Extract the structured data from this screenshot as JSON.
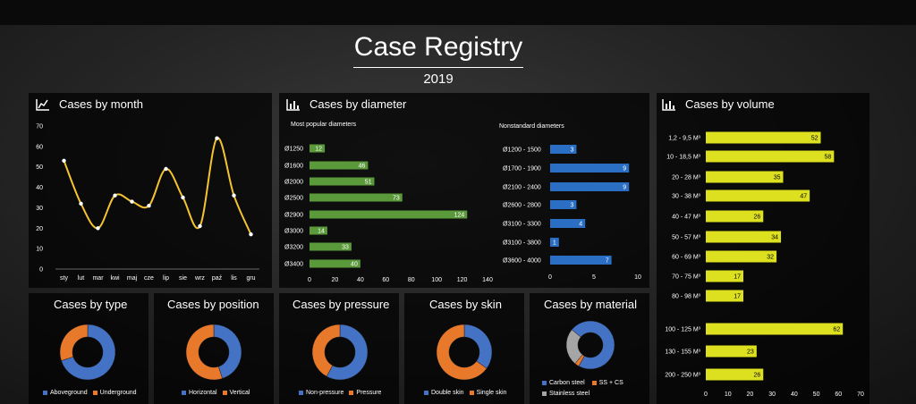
{
  "header": {
    "title": "Case Registry",
    "year": "2019"
  },
  "colors": {
    "yellow": "#f4c430",
    "green": "#5a9a3a",
    "blue": "#2a6fc4",
    "lime": "#dce01e",
    "orange": "#e8782a",
    "donutBlue": "#4472c4",
    "gray": "#a5a5a5"
  },
  "chart_data": [
    {
      "type": "line",
      "title": "Cases by month",
      "categories": [
        "sty",
        "lut",
        "mar",
        "kwi",
        "maj",
        "cze",
        "lip",
        "sie",
        "wrz",
        "paź",
        "lis",
        "gru"
      ],
      "values": [
        53,
        32,
        20,
        36,
        33,
        31,
        49,
        35,
        21,
        64,
        36,
        17
      ],
      "ylim": [
        0,
        70
      ],
      "yticks": [
        0,
        10,
        20,
        30,
        40,
        50,
        60,
        70
      ]
    },
    {
      "type": "bar",
      "title": "Cases by diameter",
      "subtitle": "Most popular diameters",
      "categories": [
        "Ø1250",
        "Ø1600",
        "Ø2000",
        "Ø2500",
        "Ø2900",
        "Ø3000",
        "Ø3200",
        "Ø3400"
      ],
      "values": [
        12,
        46,
        51,
        73,
        124,
        14,
        33,
        40
      ],
      "xlim": [
        0,
        140
      ],
      "xticks": [
        0,
        20,
        40,
        60,
        80,
        100,
        120,
        140
      ]
    },
    {
      "type": "bar",
      "subtitle": "Nonstandard diameters",
      "categories": [
        "Ø1200 - 1500",
        "Ø1700 - 1900",
        "Ø2100 - 2400",
        "Ø2600 - 2800",
        "Ø3100 - 3300",
        "Ø3100 - 3800",
        "Ø3600 - 4000"
      ],
      "values": [
        3,
        9,
        9,
        3,
        4,
        1,
        7
      ],
      "xlim": [
        0,
        10
      ],
      "xticks": [
        0,
        5,
        10
      ]
    },
    {
      "type": "bar",
      "title": "Cases by volume",
      "categories": [
        "1,2 - 9,5 M³",
        "10 - 18,5 M³",
        "20 - 28 M³",
        "30 - 38 M³",
        "40 - 47 M³",
        "50 - 57 M³",
        "60 - 69 M³",
        "70 - 75 M³",
        "80 - 98 M³",
        "100 - 125 M³",
        "130 - 155 M³",
        "200 - 250 M³"
      ],
      "values": [
        52,
        58,
        35,
        47,
        26,
        34,
        32,
        17,
        17,
        62,
        23,
        26
      ],
      "xlim": [
        0,
        70
      ],
      "xticks": [
        0,
        10,
        20,
        30,
        40,
        50,
        60,
        70
      ]
    },
    {
      "type": "pie",
      "title": "Cases by type",
      "labels": [
        "Aboveground",
        "Underground"
      ],
      "values": [
        70,
        30
      ]
    },
    {
      "type": "pie",
      "title": "Cases by position",
      "labels": [
        "Horizontal",
        "Vertical"
      ],
      "values": [
        45,
        55
      ]
    },
    {
      "type": "pie",
      "title": "Cases by pressure",
      "labels": [
        "Non-pressure",
        "Pressure"
      ],
      "values": [
        58,
        42
      ]
    },
    {
      "type": "pie",
      "title": "Cases by skin",
      "labels": [
        "Double skin",
        "Single skin"
      ],
      "values": [
        35,
        65
      ]
    },
    {
      "type": "pie",
      "title": "Cases by material",
      "labels": [
        "Carbon steel",
        "SS + CS",
        "Stainless steel"
      ],
      "values": [
        72,
        3,
        25
      ]
    }
  ]
}
